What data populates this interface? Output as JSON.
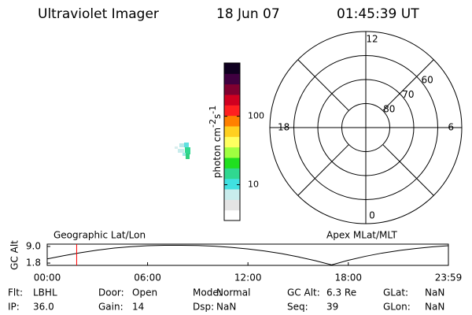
{
  "header": {
    "instrument": "Ultraviolet Imager",
    "date": "18 Jun 07",
    "time": "01:45:39 UT"
  },
  "colorbar": {
    "label": [
      "photon cm",
      "-2",
      "s",
      "-1"
    ],
    "scale": "log",
    "clim": [
      3,
      600
    ],
    "ticks": [
      10,
      100
    ],
    "colors": [
      "#ffffff",
      "#e4e4e4",
      "#c8ecec",
      "#40e0e0",
      "#30d890",
      "#20e020",
      "#a0ff40",
      "#ffff60",
      "#ffd020",
      "#ff8000",
      "#ff2020",
      "#d00020",
      "#800030",
      "#400040",
      "#100020"
    ]
  },
  "polar": {
    "rlim": [
      90,
      50
    ],
    "rticks": [
      80,
      70,
      60
    ],
    "angle_ticks": [
      12,
      18,
      6,
      0
    ]
  },
  "timeline": {
    "type": "line",
    "ylabel": "GC Alt",
    "annotations": [
      "Geographic Lat/Lon",
      "Apex MLat/MLT"
    ],
    "xlim": [
      0,
      23.983
    ],
    "xticks": [
      {
        "value": 0,
        "label": "00:00"
      },
      {
        "value": 6,
        "label": "06:00"
      },
      {
        "value": 12,
        "label": "12:00"
      },
      {
        "value": 18,
        "label": "18:00"
      },
      {
        "value": 23.983,
        "label": "23:59"
      }
    ],
    "ylim": [
      0.8,
      10
    ],
    "yticks": [
      1.8,
      {
        "value": 9,
        "label": "9.0"
      }
    ],
    "x": [
      0,
      1,
      2,
      3,
      4,
      5,
      6,
      7,
      8,
      9,
      10,
      11,
      12,
      13,
      14,
      15,
      16,
      17,
      18,
      19,
      20,
      21,
      22,
      23,
      23.983
    ],
    "values": [
      3.6,
      5.0,
      6.3,
      7.4,
      8.3,
      8.9,
      9.3,
      9.5,
      9.5,
      9.4,
      9.1,
      8.6,
      7.9,
      7.0,
      5.9,
      4.5,
      2.9,
      1.0,
      3.0,
      4.7,
      6.1,
      7.2,
      8.1,
      8.8,
      9.3
    ],
    "color": "#000000",
    "marker_x": 1.761,
    "marker_color": "#ff0000"
  },
  "info": {
    "rows": [
      [
        [
          "Flt:",
          "LBHL"
        ],
        [
          "Door:",
          "Open"
        ],
        [
          "Mode:",
          "Normal"
        ],
        [
          "GC Alt:",
          "6.3 Re"
        ],
        [
          "GLat:",
          "NaN"
        ]
      ],
      [
        [
          "IP:",
          "36.0"
        ],
        [
          "Gain:",
          "14"
        ],
        [
          "Dsp:",
          "NaN"
        ],
        [
          "Seq:",
          "39"
        ],
        [
          "GLon:",
          "NaN"
        ]
      ]
    ]
  }
}
